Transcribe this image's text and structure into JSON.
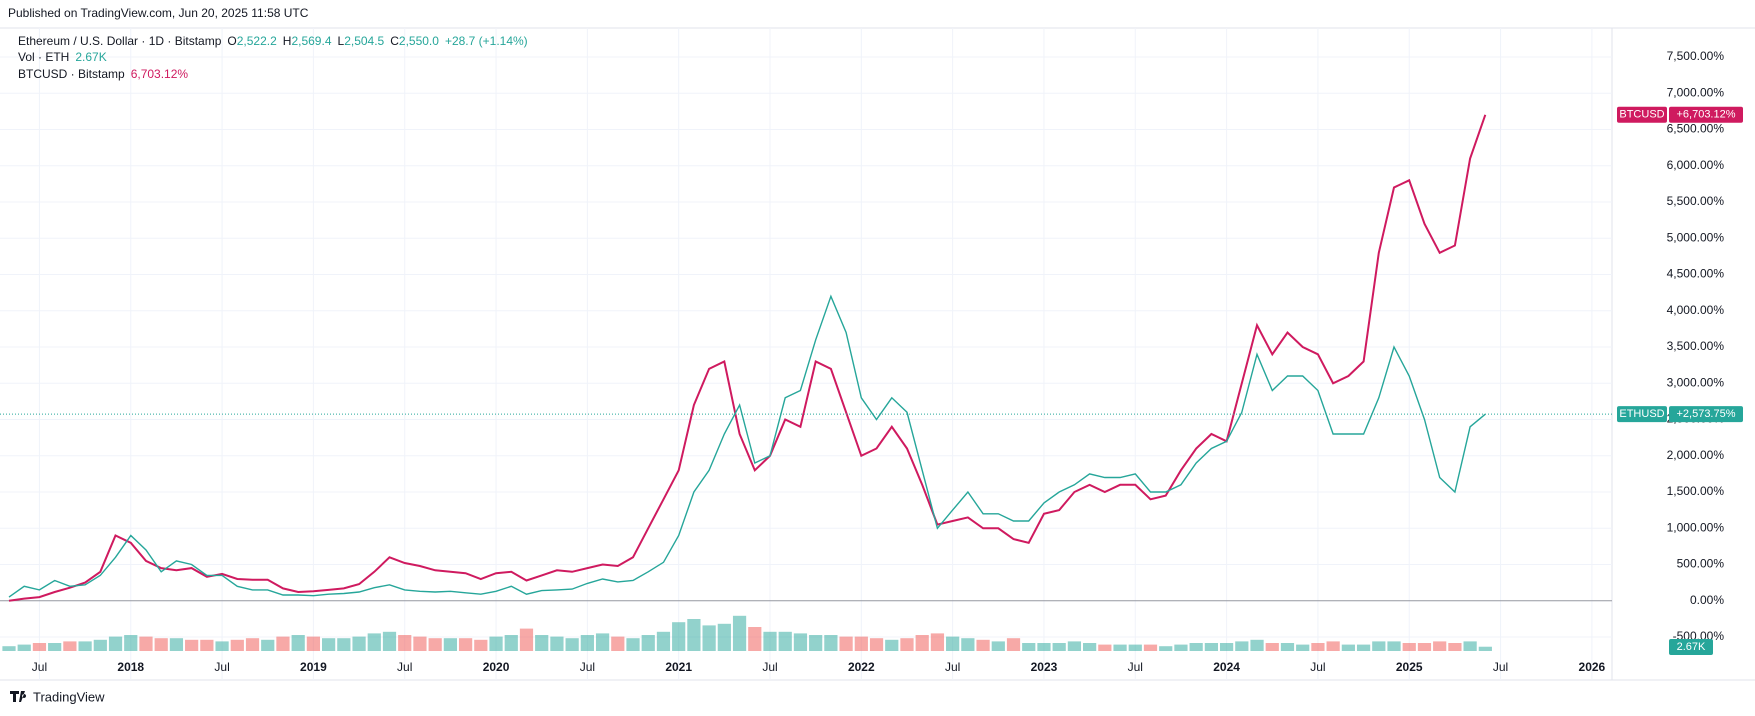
{
  "header": {
    "published": "Published on TradingView.com, Jun 20, 2025 11:58 UTC"
  },
  "footer": {
    "brand": "TradingView"
  },
  "chart_data": {
    "type": "line",
    "legend": {
      "symbol": "Ethereum / U.S. Dollar · 1D · Bitstamp",
      "o_label": "O",
      "o": "2,522.2",
      "h_label": "H",
      "h": "2,569.4",
      "l_label": "L",
      "l": "2,504.5",
      "c_label": "C",
      "c": "2,550.0",
      "change": "+28.7 (+1.14%)",
      "vol_name": "Vol · ETH",
      "vol": "2.67K",
      "btc_name": "BTCUSD · Bitstamp",
      "btc": "6,703.12%"
    },
    "categories": [
      null,
      null,
      "Jul",
      null,
      null,
      null,
      null,
      null,
      "2018",
      null,
      null,
      null,
      null,
      null,
      "Jul",
      null,
      null,
      null,
      null,
      null,
      "2019",
      null,
      null,
      null,
      null,
      null,
      "Jul",
      null,
      null,
      null,
      null,
      null,
      "2020",
      null,
      null,
      null,
      null,
      null,
      "Jul",
      null,
      null,
      null,
      null,
      null,
      "2021",
      null,
      null,
      null,
      null,
      null,
      "Jul",
      null,
      null,
      null,
      null,
      null,
      "2022",
      null,
      null,
      null,
      null,
      null,
      "Jul",
      null,
      null,
      null,
      null,
      null,
      "2023",
      null,
      null,
      null,
      null,
      null,
      "Jul",
      null,
      null,
      null,
      null,
      null,
      "2024",
      null,
      null,
      null,
      null,
      null,
      "Jul",
      null,
      null,
      null,
      null,
      null,
      "2025",
      null,
      null,
      null,
      null,
      null,
      "Jul",
      null,
      null,
      null,
      null,
      null,
      "2026"
    ],
    "series": [
      {
        "name": "BTCUSD",
        "color": "#cf1a5f",
        "last_label": "+6,703.12%",
        "values": [
          0,
          30,
          50,
          120,
          180,
          250,
          400,
          900,
          800,
          550,
          450,
          420,
          450,
          330,
          370,
          300,
          290,
          290,
          170,
          120,
          130,
          150,
          170,
          230,
          400,
          600,
          520,
          480,
          420,
          400,
          380,
          300,
          380,
          400,
          280,
          350,
          420,
          400,
          450,
          500,
          480,
          600,
          1000,
          1400,
          1800,
          2700,
          3200,
          3300,
          2300,
          1800,
          2000,
          2500,
          2400,
          3300,
          3200,
          2600,
          2000,
          2100,
          2400,
          2100,
          1600,
          1050,
          1100,
          1150,
          1000,
          1000,
          850,
          800,
          1200,
          1250,
          1500,
          1600,
          1500,
          1600,
          1600,
          1400,
          1450,
          1800,
          2100,
          2300,
          2200,
          3000,
          3800,
          3400,
          3700,
          3500,
          3400,
          3000,
          3100,
          3300,
          4800,
          5700,
          5800,
          5200,
          4800,
          4900,
          6100,
          6703.12,
          null,
          null,
          null,
          null,
          null,
          null,
          null
        ]
      },
      {
        "name": "ETHUSD",
        "color": "#26a69a",
        "last_label": "+2,573.75%",
        "values": [
          50,
          200,
          150,
          280,
          200,
          220,
          350,
          600,
          900,
          700,
          400,
          550,
          500,
          350,
          350,
          200,
          150,
          150,
          80,
          80,
          70,
          90,
          100,
          120,
          180,
          220,
          150,
          130,
          120,
          130,
          110,
          90,
          130,
          200,
          90,
          140,
          150,
          160,
          240,
          300,
          260,
          280,
          400,
          530,
          900,
          1500,
          1800,
          2300,
          2700,
          1900,
          2000,
          2800,
          2900,
          3600,
          4200,
          3700,
          2800,
          2500,
          2800,
          2600,
          1800,
          1000,
          1250,
          1500,
          1200,
          1200,
          1100,
          1100,
          1350,
          1500,
          1600,
          1750,
          1700,
          1700,
          1750,
          1500,
          1500,
          1600,
          1900,
          2100,
          2200,
          2600,
          3400,
          2900,
          3100,
          3100,
          2900,
          2300,
          2300,
          2300,
          2800,
          3500,
          3100,
          2500,
          1700,
          1500,
          2400,
          2573.75,
          null,
          null,
          null,
          null,
          null,
          null,
          null
        ]
      }
    ],
    "volume": {
      "name": "Vol",
      "last_label": "2.67K",
      "up_color": "#26a69a",
      "down_color": "#ef5350",
      "vlim": [
        0,
        25
      ],
      "values": [
        3,
        4,
        5,
        5,
        6,
        6,
        7,
        9,
        10,
        9,
        8,
        8,
        7,
        7,
        6,
        7,
        8,
        7,
        9,
        10,
        9,
        8,
        8,
        9,
        11,
        12,
        10,
        9,
        8,
        8,
        8,
        7,
        9,
        10,
        14,
        10,
        9,
        8,
        10,
        11,
        9,
        8,
        10,
        12,
        18,
        20,
        16,
        17,
        22,
        15,
        12,
        12,
        11,
        10,
        10,
        9,
        9,
        8,
        7,
        8,
        10,
        11,
        9,
        8,
        7,
        6,
        8,
        5,
        5,
        5,
        6,
        5,
        4,
        4,
        4,
        4,
        3,
        4,
        5,
        5,
        5,
        6,
        7,
        5,
        5,
        4,
        5,
        6,
        4,
        4,
        6,
        6,
        5,
        5,
        6,
        5,
        6,
        2.67,
        null,
        null,
        null,
        null,
        null,
        null,
        null
      ]
    },
    "ylim": [
      -500,
      7500
    ],
    "yticks": [
      {
        "value": -500,
        "label": "-500.00%"
      },
      {
        "value": 0,
        "label": "0.00%"
      },
      {
        "value": 500,
        "label": "500.00%"
      },
      {
        "value": 1000,
        "label": "1,000.00%"
      },
      {
        "value": 1500,
        "label": "1,500.00%"
      },
      {
        "value": 2000,
        "label": "2,000.00%"
      },
      {
        "value": 2500,
        "label": "2,500.00%"
      },
      {
        "value": 3000,
        "label": "3,000.00%"
      },
      {
        "value": 3500,
        "label": "3,500.00%"
      },
      {
        "value": 4000,
        "label": "4,000.00%"
      },
      {
        "value": 4500,
        "label": "4,500.00%"
      },
      {
        "value": 5000,
        "label": "5,000.00%"
      },
      {
        "value": 5500,
        "label": "5,500.00%"
      },
      {
        "value": 6000,
        "label": "6,000.00%"
      },
      {
        "value": 6500,
        "label": "6,500.00%"
      },
      {
        "value": 7000,
        "label": "7,000.00%"
      },
      {
        "value": 7500,
        "label": "7,500.00%"
      }
    ],
    "grid": true,
    "scale": "percent"
  }
}
